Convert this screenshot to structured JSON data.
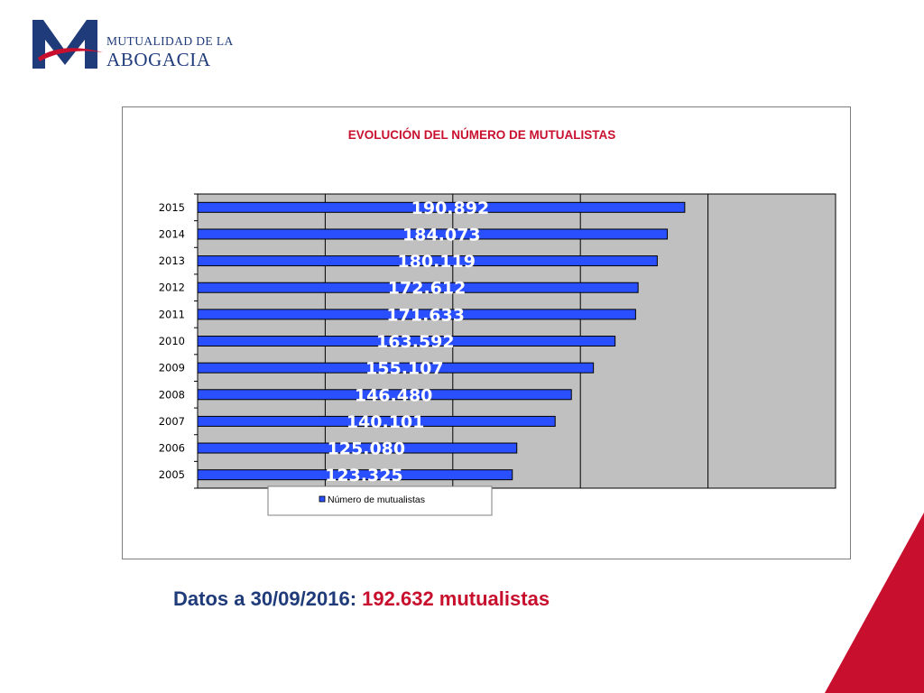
{
  "logo": {
    "line1": "MUTUALIDAD DE LA",
    "line2": "ABOGACIA"
  },
  "chart_data": {
    "type": "bar",
    "orientation": "horizontal",
    "title": "EVOLUCIÓN DEL NÚMERO DE MUTUALISTAS",
    "categories": [
      "2015",
      "2014",
      "2013",
      "2012",
      "2011",
      "2010",
      "2009",
      "2008",
      "2007",
      "2006",
      "2005"
    ],
    "series": [
      {
        "name": "Número de mutualistas",
        "values": [
          190892,
          184073,
          180119,
          172612,
          171633,
          163592,
          155107,
          146480,
          140101,
          125080,
          123325
        ],
        "data_labels": [
          "190.892",
          "184.073",
          "180.119",
          "172.612",
          "171.633",
          "163.592",
          "155.107",
          "146.480",
          "140.101",
          "125.080",
          "123.325"
        ]
      }
    ],
    "xlim": [
      0,
      250000
    ],
    "grid": true,
    "legend_position": "bottom",
    "colors": {
      "bar": "#2a4fff",
      "bar_edge": "#000000",
      "plot_bg": "#c0c0c0",
      "title": "#c8102e",
      "data_label": "#ffffff"
    }
  },
  "footer": {
    "label": "Datos a 30/09/2016:",
    "value": "192.632 mutualistas"
  },
  "colors": {
    "brand_blue": "#1f3b7a",
    "brand_red": "#c8102e"
  }
}
